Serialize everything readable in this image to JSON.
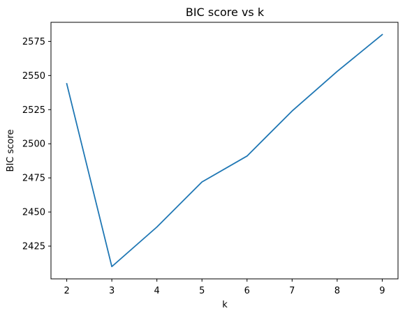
{
  "chart_data": {
    "type": "line",
    "title": "BIC score vs k",
    "xlabel": "k",
    "ylabel": "BIC score",
    "x": [
      2,
      3,
      4,
      5,
      6,
      7,
      8,
      9
    ],
    "series": [
      {
        "values": [
          2544,
          2410,
          2439,
          2472,
          2491,
          2524,
          2553,
          2580
        ],
        "color": "#1f77b4"
      }
    ],
    "xlim": [
      1.65,
      9.35
    ],
    "ylim": [
      2401,
      2589
    ],
    "xticks": [
      "2",
      "3",
      "4",
      "5",
      "6",
      "7",
      "8",
      "9"
    ],
    "yticks": [
      "2425",
      "2450",
      "2475",
      "2500",
      "2525",
      "2550",
      "2575"
    ],
    "grid": false,
    "legend": "none"
  }
}
